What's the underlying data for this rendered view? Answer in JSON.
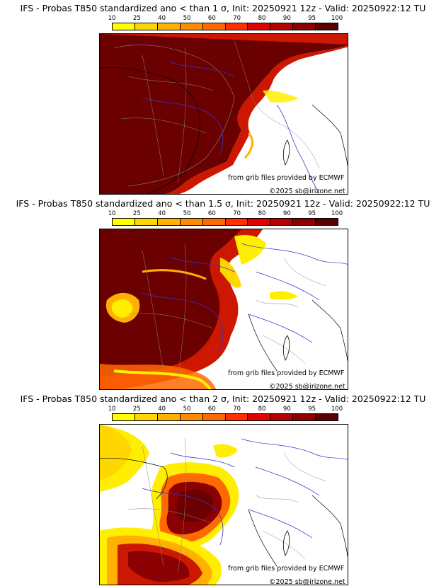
{
  "panels": [
    {
      "title": "IFS - Probas T850  standardized ano < than 1 σ, Init: 20250921 12z - Valid: 20250922:12 TU",
      "sigma": "1 σ"
    },
    {
      "title": "IFS - Probas T850  standardized ano < than 1.5 σ, Init: 20250921 12z - Valid: 20250922:12 TU",
      "sigma": "1.5 σ"
    },
    {
      "title": "IFS - Probas T850  standardized ano < than 2 σ, Init: 20250921 12z - Valid: 20250922:12 TU",
      "sigma": "2 σ"
    }
  ],
  "colorbar": {
    "ticks": [
      "10",
      "25",
      "40",
      "50",
      "60",
      "70",
      "80",
      "90",
      "95",
      "100"
    ],
    "colors": [
      "#ffff00",
      "#ffd700",
      "#ffb000",
      "#ff8c00",
      "#ff6a00",
      "#ff3000",
      "#e00000",
      "#b40000",
      "#8b0000",
      "#5a0000"
    ]
  },
  "source_text": "from grib files provided by ECMWF",
  "copyright_text": "©2025 sb@irizone.net",
  "palette": {
    "deep": "#6b0000",
    "dark": "#8b0000",
    "red": "#cc1800",
    "orange": "#ff6a00",
    "yellow": "#ffee00",
    "coast": "#000000",
    "rivers": "#3333cc",
    "borders": "#888888"
  }
}
